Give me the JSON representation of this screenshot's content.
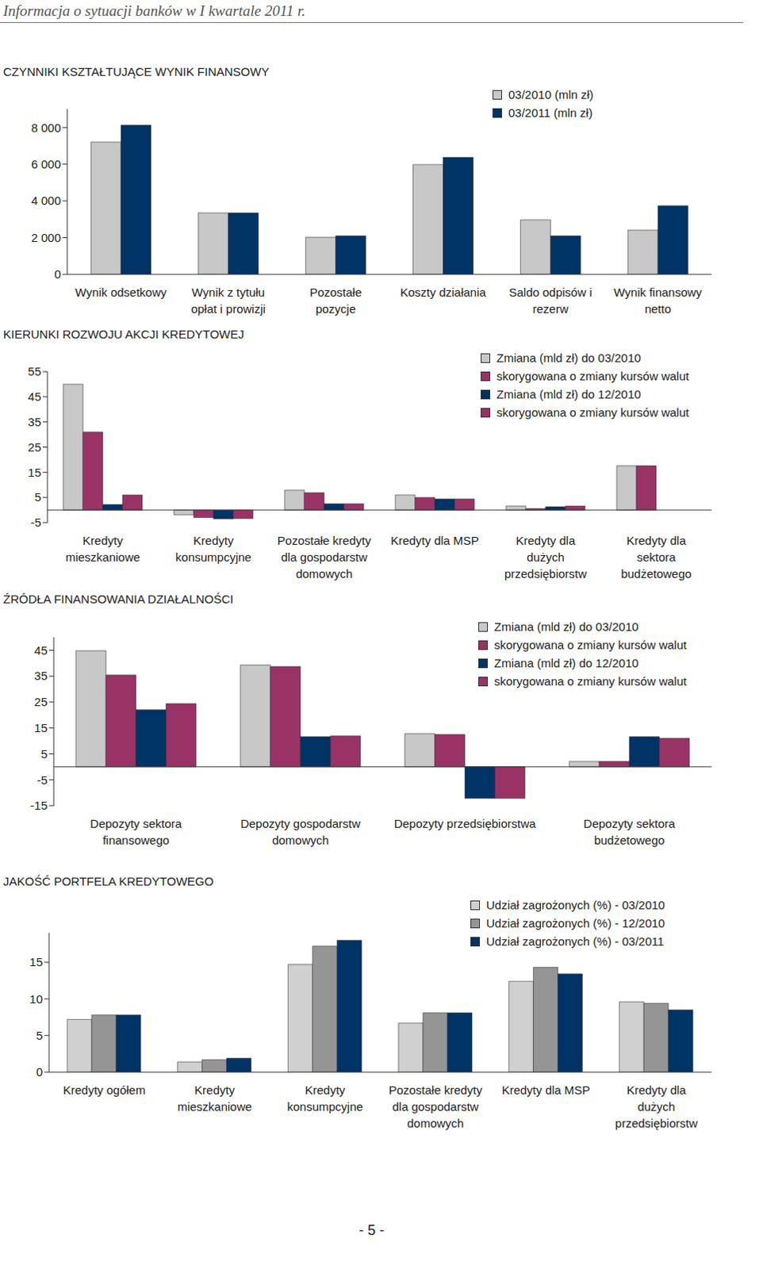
{
  "header": "Informacja o sytuacji banków w I kwartale 2011 r.",
  "footer": "- 5 -",
  "chart_data": [
    {
      "type": "bar",
      "title": "CZYNNIKI KSZTAŁTUJĄCE WYNIK FINANSOWY",
      "categories": [
        "Wynik odsetkowy",
        "Wynik z tytułu opłat i prowizji",
        "Pozostałe pozycje",
        "Koszty działania",
        "Saldo odpisów i rezerw",
        "Wynik finansowy netto"
      ],
      "series": [
        {
          "name": "03/2010 (mln zł)",
          "color": "#c8c8c8",
          "values": [
            7200,
            3350,
            2020,
            5980,
            2970,
            2410
          ]
        },
        {
          "name": "03/2011 (mln zł)",
          "color": "#003366",
          "values": [
            8130,
            3350,
            2100,
            6370,
            2100,
            3740
          ]
        }
      ],
      "ylim": [
        0,
        9000
      ],
      "yticks": [
        0,
        {
          "value": 2000,
          "label": "2 000"
        },
        {
          "value": 4000,
          "label": "4 000"
        },
        {
          "value": 6000,
          "label": "6 000"
        },
        {
          "value": 8000,
          "label": "8 000"
        }
      ],
      "grid": false,
      "legend": "top right"
    },
    {
      "type": "bar",
      "title": "KIERUNKI ROZWOJU AKCJI KREDYTOWEJ",
      "categories": [
        "Kredyty mieszkaniowe",
        "Kredyty konsumpcyjne",
        "Pozostałe kredyty dla gospodarstw domowych",
        "Kredyty dla MSP",
        "Kredyty dla dużych przedsiębiorstw",
        "Kredyty dla sektora budżetowego"
      ],
      "series": [
        {
          "name": "Zmiana (mld zł) do 03/2010",
          "color": "#c8c8c8",
          "values": [
            50,
            -1.9,
            7.9,
            6,
            1.6,
            17.6
          ]
        },
        {
          "name": "skorygowana o zmiany kursów walut",
          "color": "#993366",
          "values": [
            31,
            -3,
            6.9,
            5,
            0.6,
            17.6
          ]
        },
        {
          "name": "Zmiana (mld zł) do 12/2010",
          "color": "#003366",
          "values": [
            2.2,
            -3.5,
            2.5,
            4.4,
            1.3,
            null
          ]
        },
        {
          "name": "skorygowana o zmiany kursów walut",
          "color": "#993366",
          "values": [
            6,
            -3.4,
            2.5,
            4.4,
            1.6,
            null
          ]
        }
      ],
      "ylim": [
        -5,
        55
      ],
      "yticks": [
        -5,
        5,
        15,
        25,
        35,
        45,
        55
      ],
      "grid": false,
      "legend": "top right"
    },
    {
      "type": "bar",
      "title": "ŹRÓDŁA FINANSOWANIA DZIAŁALNOŚCI",
      "categories": [
        "Depozyty sektora finansowego",
        "Depozyty gospodarstw domowych",
        "Depozyty przedsiębiorstwa",
        "Depozyty sektora budżetowego"
      ],
      "series": [
        {
          "name": "Zmiana (mld zł) do 03/2010",
          "color": "#c8c8c8",
          "values": [
            44.8,
            39.3,
            12.8,
            2.1
          ]
        },
        {
          "name": "skorygowana o zmiany kursów walut",
          "color": "#993366",
          "values": [
            35.4,
            38.7,
            12.5,
            2.1
          ]
        },
        {
          "name": "Zmiana (mld zł) do 12/2010",
          "color": "#003366",
          "values": [
            22,
            11.6,
            -12.2,
            11.6
          ]
        },
        {
          "name": "skorygowana o zmiany kursów walut",
          "color": "#993366",
          "values": [
            24.4,
            11.9,
            -12.2,
            11
          ]
        }
      ],
      "ylim": [
        -15,
        50
      ],
      "yticks": [
        -15,
        -5,
        5,
        15,
        25,
        35,
        45
      ],
      "grid": false,
      "legend": "top right"
    },
    {
      "type": "bar",
      "title": "JAKOŚĆ PORTFELA KREDYTOWEGO",
      "categories": [
        "Kredyty ogółem",
        "Kredyty mieszkaniowe",
        "Kredyty konsumpcyjne",
        "Pozostałe kredyty dla gospodarstw domowych",
        "Kredyty dla MSP",
        "Kredyty dla dużych przedsiębiorstw"
      ],
      "series": [
        {
          "name": "Udział zagrożonych (%) - 03/2010",
          "color": "#d0d0d0",
          "values": [
            7.2,
            1.4,
            14.7,
            6.7,
            12.4,
            9.6
          ]
        },
        {
          "name": "Udział zagrożonych (%) - 12/2010",
          "color": "#959595",
          "values": [
            7.8,
            1.7,
            17.2,
            8.1,
            14.3,
            9.4
          ]
        },
        {
          "name": "Udział zagrożonych (%) - 03/2011",
          "color": "#003366",
          "values": [
            7.8,
            1.9,
            18.0,
            8.1,
            13.4,
            8.5
          ]
        }
      ],
      "ylim": [
        0,
        19
      ],
      "yticks": [
        0,
        5,
        10,
        15
      ],
      "grid": false,
      "legend": "top right"
    }
  ]
}
